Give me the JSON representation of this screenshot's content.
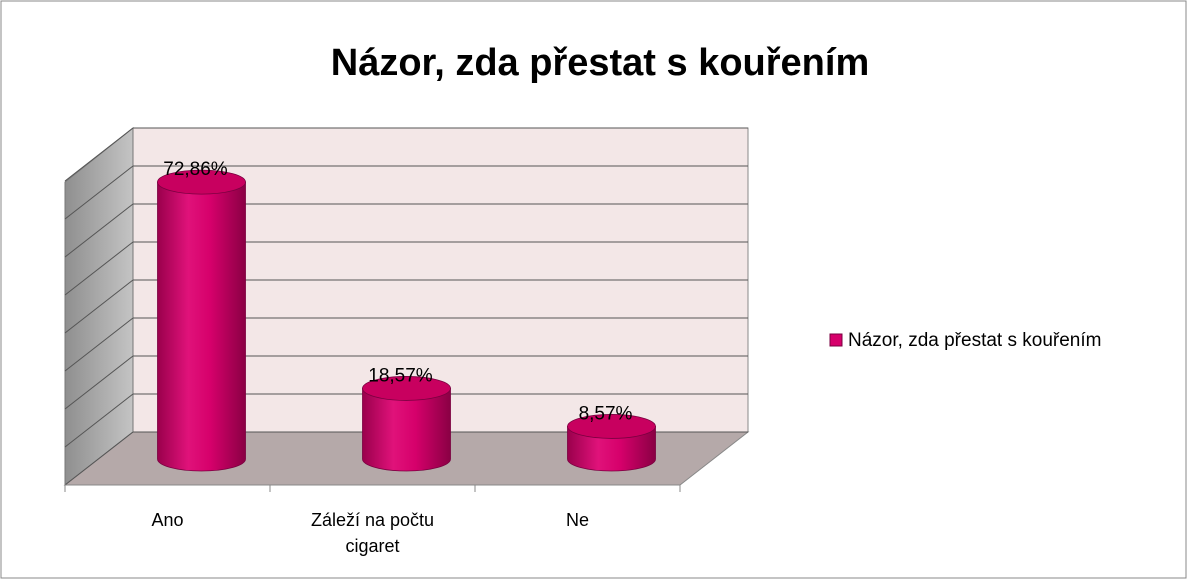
{
  "chart_data": {
    "type": "bar3d",
    "title": "Názor, zda přestat s kouřením",
    "categories": [
      "Ano",
      "Záleží na počtu cigaret",
      "Ne"
    ],
    "series": [
      {
        "name": "Názor, zda přestat s kouřením",
        "color": "#d6006b",
        "values": [
          72.86,
          18.57,
          8.57
        ],
        "value_labels": [
          "72,86%",
          "18,57%",
          "8,57%"
        ]
      }
    ],
    "ylim": [
      0,
      80
    ],
    "yticks": [
      0,
      10,
      20,
      30,
      40,
      50,
      60,
      70,
      80
    ],
    "grid": true,
    "legend": "right"
  }
}
